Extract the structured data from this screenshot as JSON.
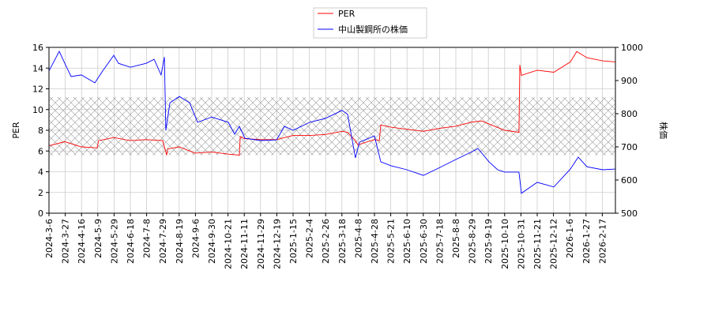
{
  "chart_data": {
    "type": "line",
    "title": "",
    "xlabel": "",
    "ylabel": "PER",
    "y2label": "株価",
    "ylim": [
      0,
      16
    ],
    "y2lim": [
      500,
      1000
    ],
    "yticks": [
      0,
      2,
      4,
      6,
      8,
      10,
      12,
      14,
      16
    ],
    "y2ticks": [
      500,
      600,
      700,
      800,
      900,
      1000
    ],
    "grid": true,
    "legend_position": "top-center",
    "hatched_band_per": [
      5.6,
      11.2
    ],
    "categories": [
      "2024-3-6",
      "2024-3-27",
      "2024-4-16",
      "2024-5-9",
      "2024-5-29",
      "2024-6-18",
      "2024-7-8",
      "2024-7-29",
      "2024-8-19",
      "2024-9-6",
      "2024-9-30",
      "2024-10-21",
      "2024-11-11",
      "2024-11-29",
      "2024-12-19",
      "2025-1-15",
      "2025-2-4",
      "2025-2-26",
      "2025-3-18",
      "2025-4-8",
      "2025-4-28",
      "2025-5-21",
      "2025-6-10",
      "2025-6-30",
      "2025-7-18",
      "2025-8-8",
      "2025-8-29",
      "2025-9-19",
      "2025-10-10",
      "2025-10-31",
      "2025-11-21",
      "2025-12-12",
      "2026-1-6",
      "2026-1-27",
      "2026-2-17"
    ],
    "x_unit": "category index",
    "series": [
      {
        "name": "PER",
        "color": "#ff0000",
        "axis": "left",
        "points": [
          [
            0,
            6.5
          ],
          [
            0.97,
            6.9
          ],
          [
            1.99,
            6.4
          ],
          [
            2.96,
            6.3
          ],
          [
            3.05,
            7.0
          ],
          [
            3.98,
            7.3
          ],
          [
            5.0,
            7.0
          ],
          [
            5.97,
            7.1
          ],
          [
            6.99,
            7.0
          ],
          [
            7.23,
            5.6
          ],
          [
            7.3,
            6.2
          ],
          [
            8.01,
            6.4
          ],
          [
            8.98,
            5.8
          ],
          [
            10.0,
            5.9
          ],
          [
            11.02,
            5.7
          ],
          [
            11.7,
            5.6
          ],
          [
            11.75,
            7.4
          ],
          [
            11.99,
            7.2
          ],
          [
            13.01,
            7.1
          ],
          [
            13.98,
            7.1
          ],
          [
            15.0,
            7.5
          ],
          [
            16.02,
            7.5
          ],
          [
            16.99,
            7.6
          ],
          [
            18.01,
            7.9
          ],
          [
            18.35,
            7.8
          ],
          [
            18.83,
            7.0
          ],
          [
            18.98,
            6.6
          ],
          [
            20.0,
            7.1
          ],
          [
            20.3,
            7.0
          ],
          [
            20.39,
            8.5
          ],
          [
            21.02,
            8.3
          ],
          [
            21.99,
            8.1
          ],
          [
            23.01,
            7.9
          ],
          [
            24.03,
            8.2
          ],
          [
            25.0,
            8.4
          ],
          [
            26.02,
            8.8
          ],
          [
            26.6,
            8.9
          ],
          [
            27.04,
            8.6
          ],
          [
            28.0,
            8.0
          ],
          [
            28.88,
            7.8
          ],
          [
            28.93,
            14.3
          ],
          [
            29.03,
            13.3
          ],
          [
            30.0,
            13.8
          ],
          [
            31.02,
            13.6
          ],
          [
            32.04,
            14.6
          ],
          [
            32.43,
            15.6
          ],
          [
            33.06,
            15.0
          ],
          [
            34.03,
            14.7
          ],
          [
            34.81,
            14.6
          ]
        ]
      },
      {
        "name": "中山製鋼所の株価",
        "color": "#0000ff",
        "axis": "right",
        "points": [
          [
            0,
            929
          ],
          [
            0.63,
            988
          ],
          [
            0.97,
            952
          ],
          [
            1.36,
            912
          ],
          [
            1.99,
            917
          ],
          [
            2.82,
            893
          ],
          [
            3.3,
            929
          ],
          [
            3.98,
            976
          ],
          [
            4.27,
            952
          ],
          [
            5.0,
            940
          ],
          [
            5.97,
            952
          ],
          [
            6.46,
            964
          ],
          [
            6.89,
            917
          ],
          [
            7.09,
            971
          ],
          [
            7.18,
            750
          ],
          [
            7.43,
            833
          ],
          [
            8.01,
            852
          ],
          [
            8.64,
            833
          ],
          [
            9.13,
            774
          ],
          [
            10.0,
            790
          ],
          [
            11.02,
            774
          ],
          [
            11.41,
            738
          ],
          [
            11.7,
            762
          ],
          [
            12.04,
            726
          ],
          [
            13.01,
            719
          ],
          [
            13.98,
            721
          ],
          [
            14.47,
            762
          ],
          [
            15.0,
            750
          ],
          [
            16.02,
            774
          ],
          [
            16.99,
            786
          ],
          [
            18.01,
            810
          ],
          [
            18.35,
            798
          ],
          [
            18.83,
            667
          ],
          [
            19.08,
            714
          ],
          [
            20.0,
            733
          ],
          [
            20.39,
            655
          ],
          [
            21.02,
            643
          ],
          [
            21.99,
            631
          ],
          [
            23.01,
            614
          ],
          [
            24.03,
            638
          ],
          [
            25.0,
            662
          ],
          [
            26.02,
            686
          ],
          [
            26.36,
            695
          ],
          [
            27.04,
            655
          ],
          [
            27.57,
            631
          ],
          [
            28.0,
            624
          ],
          [
            28.88,
            624
          ],
          [
            29.03,
            560
          ],
          [
            30.0,
            593
          ],
          [
            31.02,
            579
          ],
          [
            32.04,
            633
          ],
          [
            32.52,
            669
          ],
          [
            33.06,
            640
          ],
          [
            34.03,
            631
          ],
          [
            34.81,
            633
          ]
        ]
      }
    ]
  }
}
